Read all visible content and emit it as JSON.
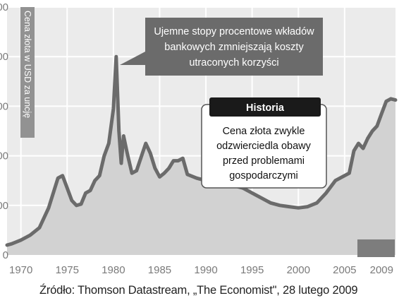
{
  "chart_data": {
    "type": "area",
    "ylabel": "Cena złota w USD za uncję",
    "y_tick_labels": [
      "0",
      "00",
      "00",
      "00",
      "00",
      "00"
    ],
    "xlim": [
      1968.5,
      2010.5
    ],
    "x_ticks": [
      1970,
      1975,
      1980,
      1985,
      1990,
      1995,
      2000,
      2005,
      2009
    ],
    "x_tick_labels": [
      "1970",
      "1975",
      "1980",
      "1985",
      "1990",
      "1995",
      "2000",
      "2005",
      "2009"
    ],
    "ylim": [
      0,
      1000
    ],
    "grid": true,
    "series": [
      {
        "x": [
          1968.5,
          1969.0,
          1970.0,
          1971.0,
          1972.0,
          1973.0,
          1974.0,
          1974.5,
          1975.0,
          1975.5,
          1976.0,
          1976.5,
          1977.0,
          1977.5,
          1978.0,
          1978.5,
          1979.0,
          1979.5,
          1980.0,
          1980.3,
          1980.6,
          1980.85,
          1981.1,
          1981.5,
          1982.0,
          1982.5,
          1983.0,
          1983.5,
          1984.0,
          1984.5,
          1985.0,
          1985.5,
          1986.0,
          1986.5,
          1987.0,
          1987.5,
          1988.0,
          1989.0,
          1990.0,
          1991.0,
          1992.0,
          1993.0,
          1994.0,
          1995.0,
          1996.0,
          1997.0,
          1998.0,
          1999.0,
          2000.0,
          2001.0,
          2002.0,
          2003.0,
          2004.0,
          2005.0,
          2005.5,
          2006.0,
          2006.5,
          2007.0,
          2007.5,
          2008.0,
          2008.5,
          2009.0,
          2009.5,
          2010.0,
          2010.5
        ],
        "y": [
          40,
          45,
          60,
          80,
          110,
          190,
          310,
          320,
          270,
          220,
          200,
          205,
          250,
          260,
          300,
          320,
          400,
          450,
          590,
          800,
          500,
          370,
          480,
          410,
          330,
          340,
          395,
          450,
          410,
          350,
          315,
          330,
          350,
          380,
          380,
          390,
          325,
          310,
          300,
          290,
          280,
          280,
          270,
          250,
          230,
          210,
          200,
          195,
          190,
          195,
          210,
          250,
          300,
          320,
          330,
          420,
          450,
          430,
          470,
          500,
          520,
          570,
          620,
          630,
          625
        ]
      }
    ],
    "annotations": [
      {
        "text": "Ujemne stopy procentowe wkładów bankowych zmniejszają koszty utraconych korzyści",
        "lines": [
          "Ujemne stopy procentowe wkładów",
          "bankowych zmniejszają koszty",
          "utraconych korzyści"
        ]
      },
      {
        "title": "Historia",
        "text": "Cena złota zwykle odzwierciedla obawy przed problemami gospodarczymi",
        "lines": [
          "Cena złota zwykle",
          "odzwierciedla obawy",
          "przed problemami",
          "gospodarczymi"
        ]
      }
    ]
  },
  "source": "Źródło: Thomson Datastream, „The Economist\", 28 lutego 2009"
}
